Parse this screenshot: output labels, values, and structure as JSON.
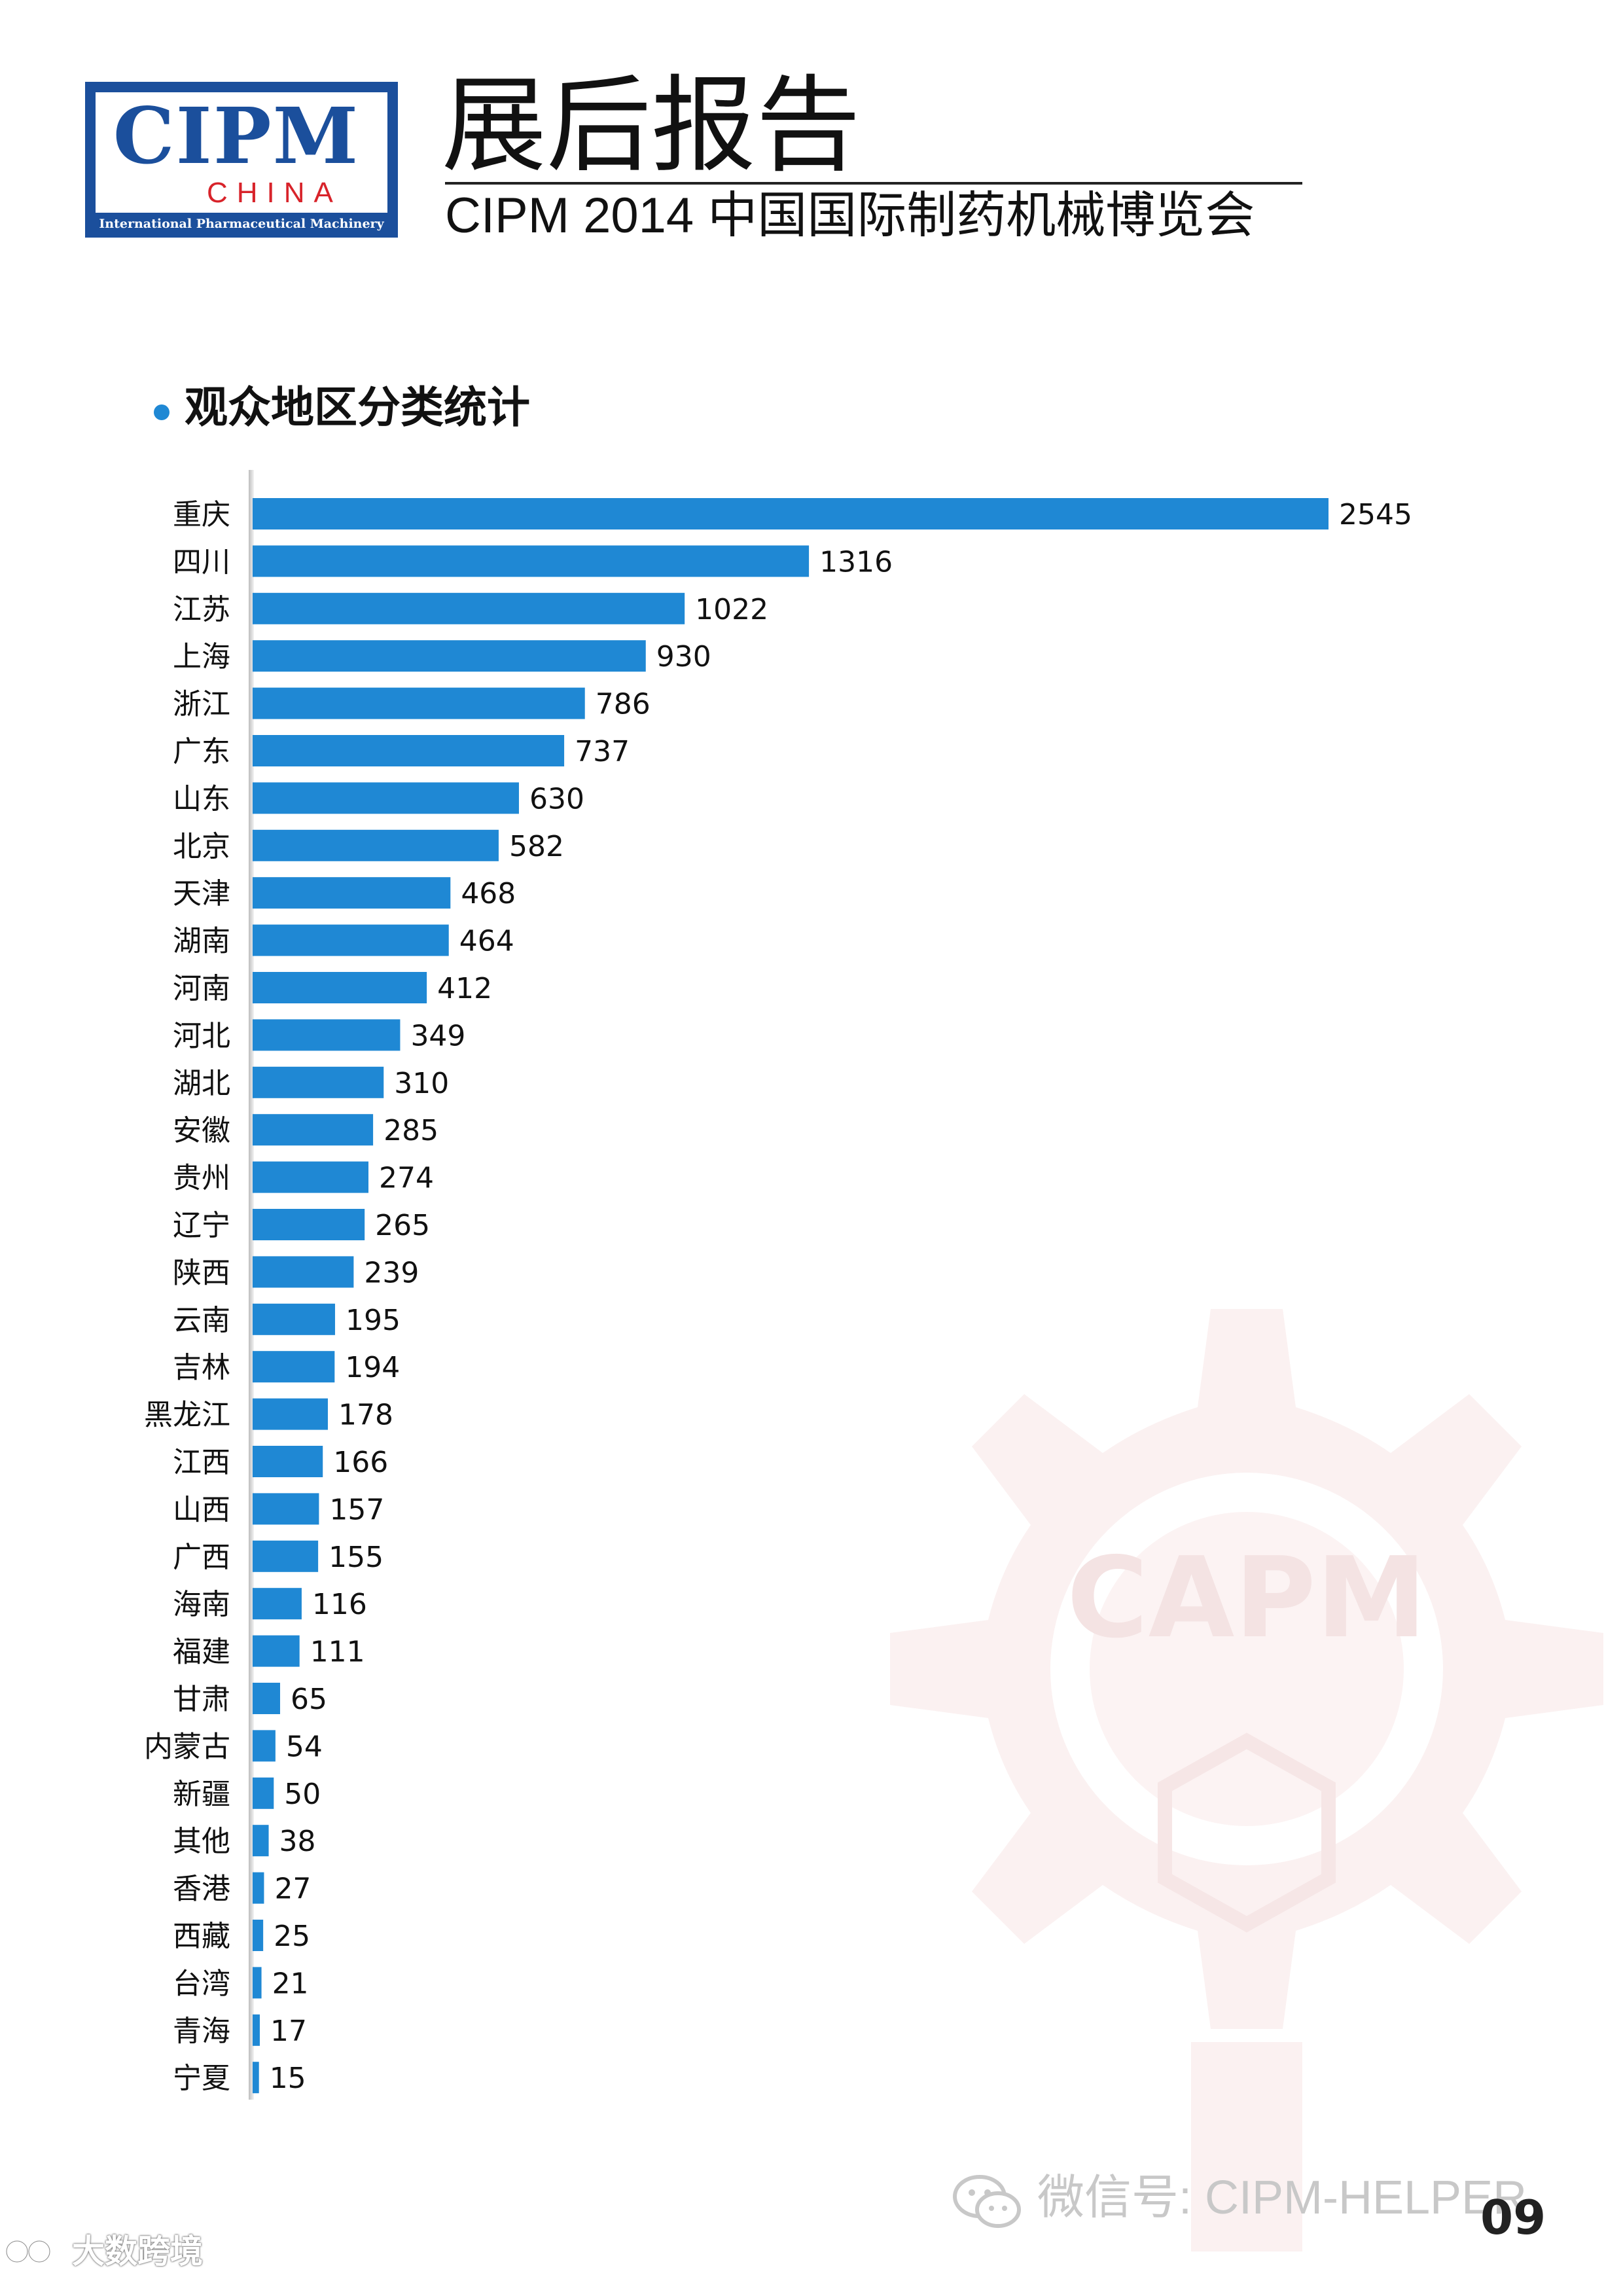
{
  "header": {
    "logo_main": "CIPM",
    "logo_sub": "CHINA",
    "logo_band": "International Pharmaceutical Machinery",
    "title": "展后报告",
    "subtitle": "CIPM 2014 中国国际制药机械博览会"
  },
  "section": {
    "title": "观众地区分类统计"
  },
  "colors": {
    "bar": "#1f88d4",
    "brand_blue": "#1b4f9c",
    "brand_red": "#d8232a"
  },
  "chart_data": {
    "type": "bar",
    "orientation": "horizontal",
    "title": "",
    "categories": [
      "重庆",
      "四川",
      "江苏",
      "上海",
      "浙江",
      "广东",
      "山东",
      "北京",
      "天津",
      "湖南",
      "河南",
      "河北",
      "湖北",
      "安徽",
      "贵州",
      "辽宁",
      "陕西",
      "云南",
      "吉林",
      "黑龙江",
      "江西",
      "山西",
      "广西",
      "海南",
      "福建",
      "甘肃",
      "内蒙古",
      "新疆",
      "其他",
      "香港",
      "西藏",
      "台湾",
      "青海",
      "宁夏"
    ],
    "values": [
      2545,
      1316,
      1022,
      930,
      786,
      737,
      630,
      582,
      468,
      464,
      412,
      349,
      310,
      285,
      274,
      265,
      239,
      195,
      194,
      178,
      166,
      157,
      155,
      116,
      111,
      65,
      54,
      50,
      38,
      27,
      25,
      21,
      17,
      15
    ],
    "grid": false,
    "data_labels": true
  },
  "footer": {
    "wechat": "微信号: CIPM-HELPER",
    "page_number": "09",
    "corner_brand": "大数跨境",
    "watermark": "CAPM"
  }
}
